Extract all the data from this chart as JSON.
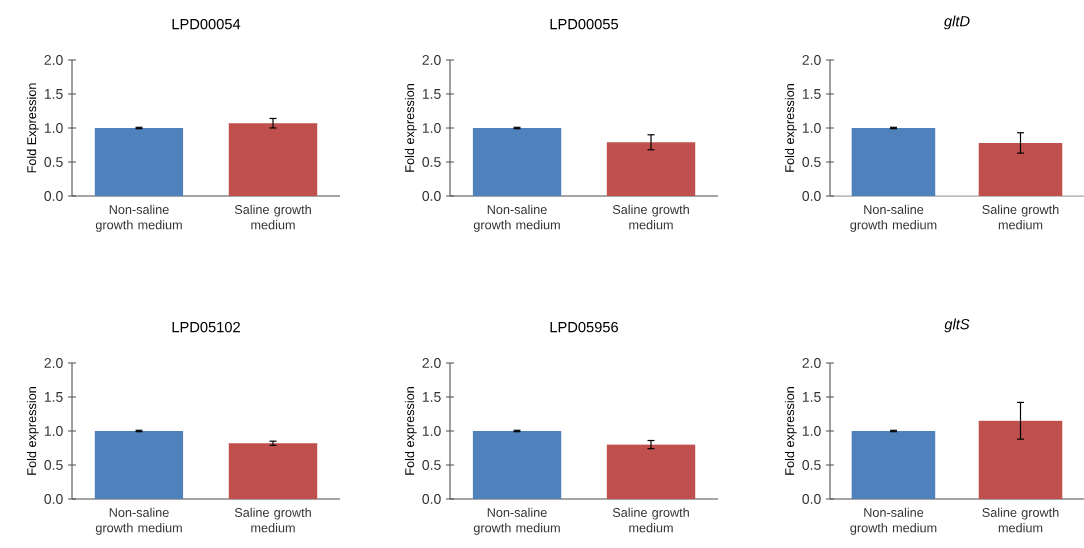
{
  "chart_data": [
    {
      "type": "bar",
      "title": "LPD00054",
      "ylabel": "Fold Expression",
      "categories": [
        "Non-saline growth medium",
        "Saline growth medium"
      ],
      "values": [
        1.0,
        1.07
      ],
      "errors": [
        0.01,
        0.07
      ],
      "colors": [
        "#4f81bd",
        "#c0504d"
      ],
      "ylim": [
        0,
        2
      ],
      "yticks": [
        {
          "value": 0,
          "label": "0.0"
        },
        {
          "value": 0.5,
          "label": "0.5"
        },
        {
          "value": 1,
          "label": "1.0"
        },
        {
          "value": 1.5,
          "label": "1.5"
        },
        {
          "value": 2,
          "label": "2.0"
        }
      ]
    },
    {
      "type": "bar",
      "title": "LPD00055",
      "ylabel": "Fold expression",
      "categories": [
        "Non-saline growth medium",
        "Saline growth medium"
      ],
      "values": [
        1.0,
        0.79
      ],
      "errors": [
        0.01,
        0.11
      ],
      "colors": [
        "#4f81bd",
        "#c0504d"
      ],
      "ylim": [
        0,
        2
      ],
      "yticks": [
        {
          "value": 0,
          "label": "0.0"
        },
        {
          "value": 0.5,
          "label": "0.5"
        },
        {
          "value": 1,
          "label": "1.0"
        },
        {
          "value": 1.5,
          "label": "1.5"
        },
        {
          "value": 2,
          "label": "2.0"
        }
      ]
    },
    {
      "type": "bar",
      "title": "*gltD*",
      "ylabel": "Fold expression",
      "categories": [
        "Non-saline growth medium",
        "Saline growth medium"
      ],
      "values": [
        1.0,
        0.78
      ],
      "errors": [
        0.01,
        0.15
      ],
      "colors": [
        "#4f81bd",
        "#c0504d"
      ],
      "ylim": [
        0,
        2
      ],
      "yticks": [
        {
          "value": 0,
          "label": "0.0"
        },
        {
          "value": 0.5,
          "label": "0.5"
        },
        {
          "value": 1,
          "label": "1.0"
        },
        {
          "value": 1.5,
          "label": "1.5"
        },
        {
          "value": 2,
          "label": "2.0"
        }
      ]
    },
    {
      "type": "bar",
      "title": "LPD05102",
      "ylabel": "Fold expression",
      "categories": [
        "Non-saline growth medium",
        "Saline growth medium"
      ],
      "values": [
        1.0,
        0.82
      ],
      "errors": [
        0.01,
        0.03
      ],
      "colors": [
        "#4f81bd",
        "#c0504d"
      ],
      "ylim": [
        0,
        2
      ],
      "yticks": [
        {
          "value": 0,
          "label": "0.0"
        },
        {
          "value": 0.5,
          "label": "0.5"
        },
        {
          "value": 1,
          "label": "1.0"
        },
        {
          "value": 1.5,
          "label": "1.5"
        },
        {
          "value": 2,
          "label": "2.0"
        }
      ]
    },
    {
      "type": "bar",
      "title": "LPD05956",
      "ylabel": "Fold expression",
      "categories": [
        "Non-saline growth medium",
        "Saline growth medium"
      ],
      "values": [
        1.0,
        0.8
      ],
      "errors": [
        0.01,
        0.06
      ],
      "colors": [
        "#4f81bd",
        "#c0504d"
      ],
      "ylim": [
        0,
        2
      ],
      "yticks": [
        {
          "value": 0,
          "label": "0.0"
        },
        {
          "value": 0.5,
          "label": "0.5"
        },
        {
          "value": 1,
          "label": "1.0"
        },
        {
          "value": 1.5,
          "label": "1.5"
        },
        {
          "value": 2,
          "label": "2.0"
        }
      ]
    },
    {
      "type": "bar",
      "title": "*gltS*",
      "ylabel": "Fold expression",
      "categories": [
        "Non-saline growth medium",
        "Saline growth medium"
      ],
      "values": [
        1.0,
        1.15
      ],
      "errors": [
        0.01,
        0.27
      ],
      "colors": [
        "#4f81bd",
        "#c0504d"
      ],
      "ylim": [
        0,
        2
      ],
      "yticks": [
        {
          "value": 0,
          "label": "0.0"
        },
        {
          "value": 0.5,
          "label": "0.5"
        },
        {
          "value": 1,
          "label": "1.0"
        },
        {
          "value": 1.5,
          "label": "1.5"
        },
        {
          "value": 2,
          "label": "2.0"
        }
      ]
    }
  ]
}
